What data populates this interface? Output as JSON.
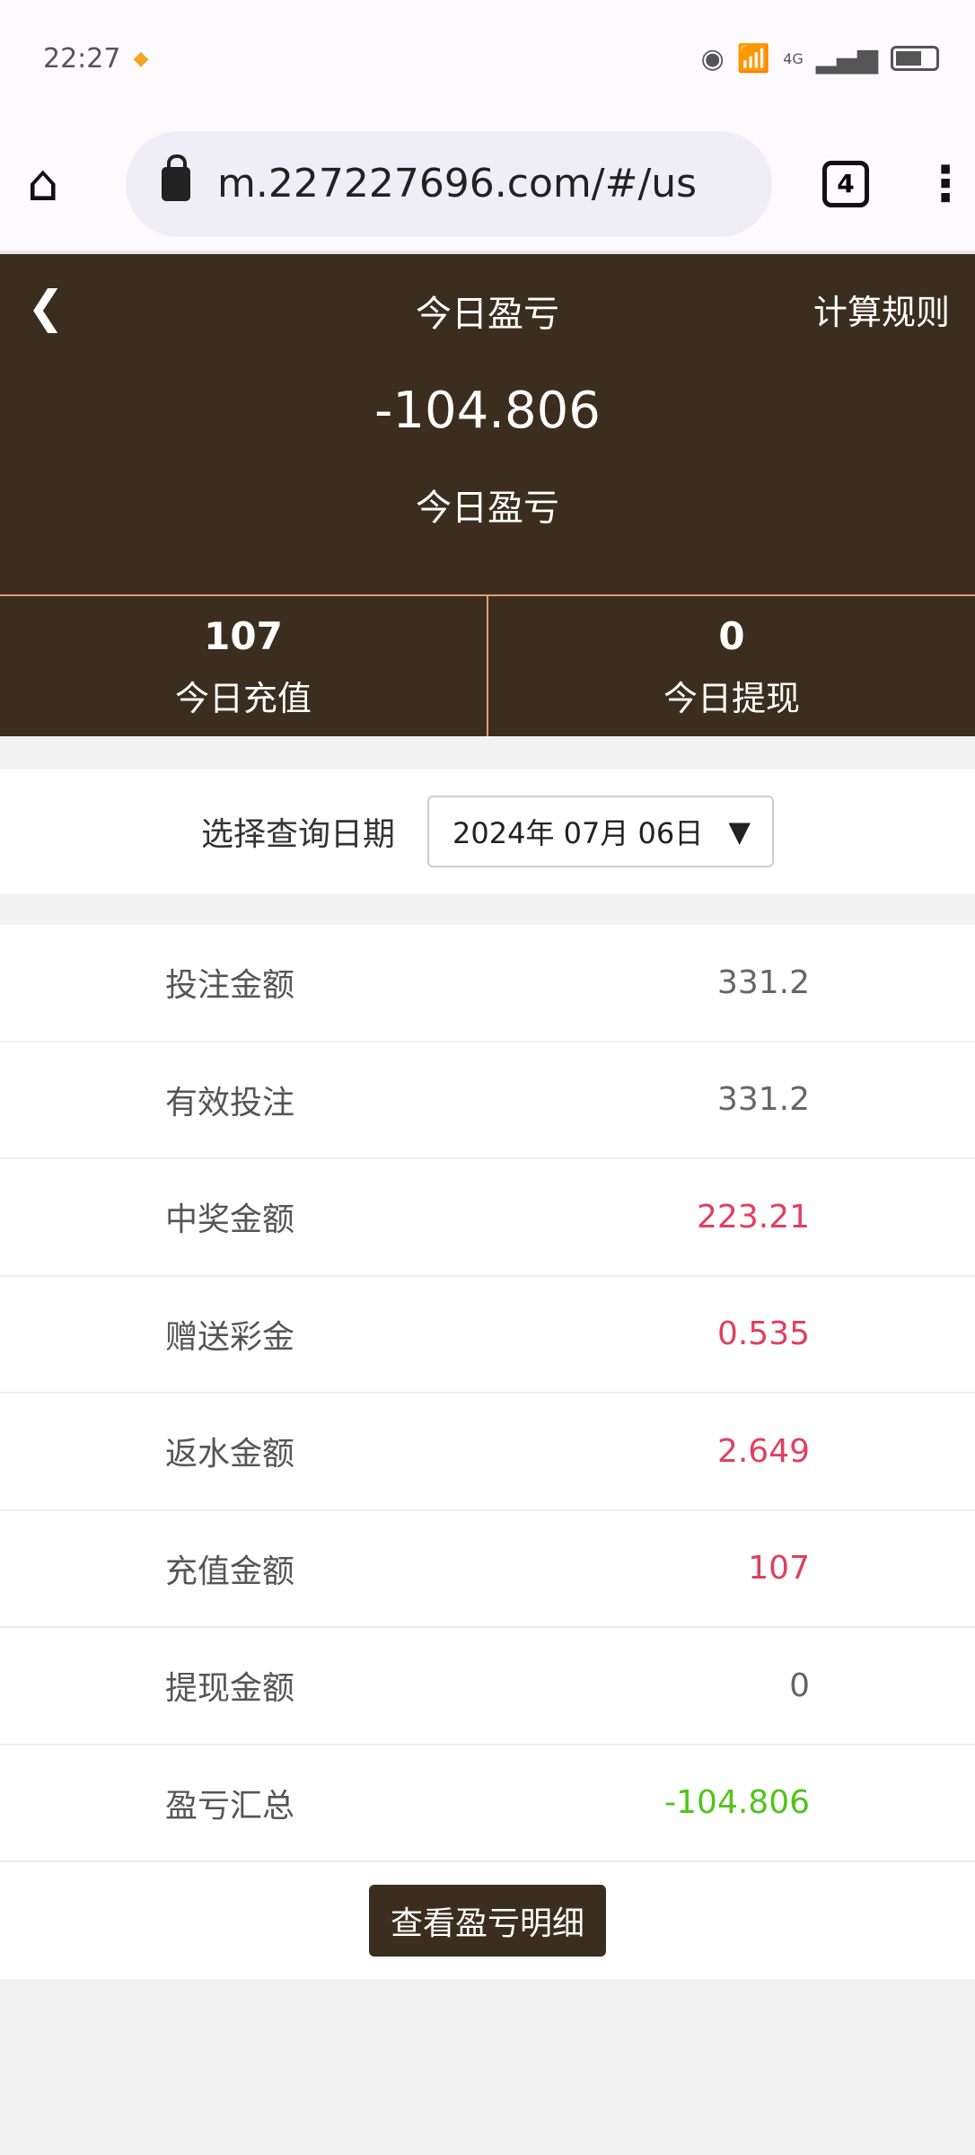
{
  "status_bar": {
    "time": "22:27",
    "network": "4G"
  },
  "browser": {
    "url": "m.227227696.com/#/us",
    "tab_count": "4"
  },
  "header": {
    "title": "今日盈亏",
    "rules_link": "计算规则",
    "amount": "-104.806",
    "amount_label": "今日盈亏"
  },
  "stats": [
    {
      "value": "107",
      "label": "今日充值"
    },
    {
      "value": "0",
      "label": "今日提现"
    }
  ],
  "date_filter": {
    "label": "选择查询日期",
    "value": "2024年 07月 06日"
  },
  "rows": [
    {
      "label": "投注金额",
      "value": "331.2",
      "color": "#666666"
    },
    {
      "label": "有效投注",
      "value": "331.2",
      "color": "#666666"
    },
    {
      "label": "中奖金额",
      "value": "223.21",
      "color": "#e0405e"
    },
    {
      "label": "赠送彩金",
      "value": "0.535",
      "color": "#e0405e"
    },
    {
      "label": "返水金额",
      "value": "2.649",
      "color": "#e0405e"
    },
    {
      "label": "充值金额",
      "value": "107",
      "color": "#e0405e"
    },
    {
      "label": "提现金额",
      "value": "0",
      "color": "#666666"
    },
    {
      "label": "盈亏汇总",
      "value": "-104.806",
      "color": "#52c41a"
    }
  ],
  "detail_button": "查看盈亏明细",
  "colors": {
    "brand": "#3c2e1e",
    "divider": "#e89a7e"
  }
}
